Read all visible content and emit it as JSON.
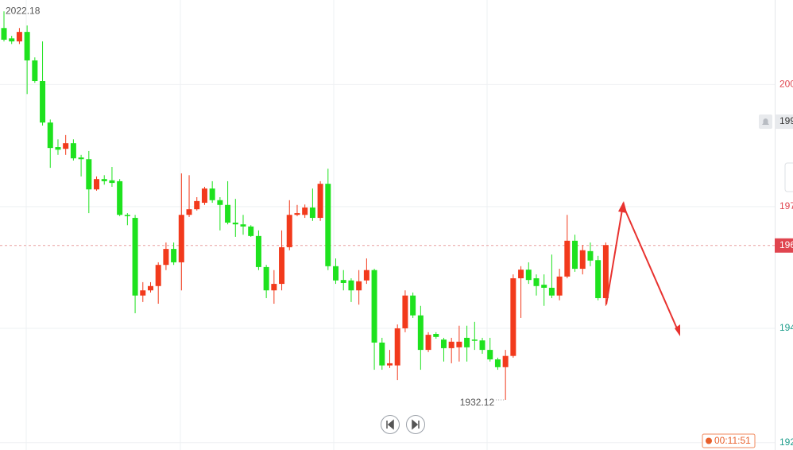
{
  "chart_data": {
    "type": "candlestick",
    "up_color": "#f23a1c",
    "down_color": "#1ee21e",
    "ylim": [
      1920.5,
      2024.8
    ],
    "yticks": [
      {
        "value": 2005.2,
        "label": "200"
      },
      {
        "value": 1976.9,
        "label": "197"
      },
      {
        "value": 1948.7,
        "label": "194"
      },
      {
        "value": 1922.2,
        "label": "192"
      }
    ],
    "grid": true,
    "current_price": {
      "value": 1967.9,
      "label": "196"
    },
    "alert_price": {
      "value": 1996.6,
      "label": "199"
    },
    "timer": "00:11:51",
    "open": [
      2018.3,
      2015.9,
      2015.2,
      2017.4,
      2010.8,
      2006.0,
      1996.4,
      1990.7,
      1990.3,
      1991.6,
      1988.3,
      1987.9,
      1980.9,
      1983.3,
      1983.0,
      1982.8,
      1975.0,
      1974.3,
      1956.3,
      1957.5,
      1958.5,
      1963.4,
      1967.1,
      1964.0,
      1975.0,
      1976.3,
      1977.8,
      1981.1,
      1978.4,
      1977.3,
      1973.2,
      1972.8,
      1972.3,
      1970.1,
      1962.9,
      1957.5,
      1959.0,
      1967.5,
      1975.0,
      1975.0,
      1976.7,
      1974.3,
      1982.2,
      1963.1,
      1959.9,
      1959.8,
      1957.5,
      1959.8,
      1962.2,
      1945.4,
      1940.1,
      1940.1,
      1948.7,
      1956.3,
      1951.7,
      1943.7,
      1947.4,
      1946.1,
      1944.1,
      1944.3,
      1946.5,
      1946.1,
      1945.9,
      1943.7,
      1941.5,
      1939.7,
      1942.3,
      1960.3,
      1962.3,
      1960.3,
      1958.8,
      1958.1,
      1956.3,
      1960.7,
      1969.0,
      1962.5,
      1966.6,
      1964.5,
      1955.7
    ],
    "high": [
      2022.18,
      2016.5,
      2018.3,
      2018.9,
      2011.5,
      2015.2,
      1997.1,
      1992.5,
      1993.5,
      1992.5,
      1988.9,
      1989.8,
      1983.9,
      1984.2,
      1986.1,
      1983.3,
      1975.4,
      1975.0,
      1959.4,
      1959.4,
      1964.0,
      1968.6,
      1968.6,
      1984.6,
      1984.2,
      1979.1,
      1981.5,
      1982.8,
      1979.1,
      1982.8,
      1978.7,
      1975.0,
      1972.6,
      1971.4,
      1963.4,
      1962.2,
      1971.4,
      1978.4,
      1977.3,
      1977.4,
      1981.1,
      1982.8,
      1985.7,
      1964.9,
      1962.2,
      1960.3,
      1962.2,
      1964.9,
      1962.5,
      1946.5,
      1943.7,
      1949.6,
      1957.5,
      1957.0,
      1953.9,
      1947.8,
      1947.8,
      1946.5,
      1946.5,
      1949.3,
      1949.3,
      1950.2,
      1946.5,
      1946.5,
      1941.9,
      1943.7,
      1961.2,
      1963.1,
      1964.0,
      1961.2,
      1961.2,
      1965.8,
      1962.5,
      1975.0,
      1970.4,
      1968.0,
      1968.6,
      1965.5,
      1968.6
    ],
    "low": [
      2015.2,
      2014.6,
      2014.6,
      2003.0,
      2005.6,
      1995.7,
      1985.9,
      1988.9,
      1988.9,
      1987.6,
      1983.9,
      1975.4,
      1980.6,
      1982.0,
      1981.5,
      1974.7,
      1972.6,
      1952.2,
      1954.8,
      1957.0,
      1954.4,
      1962.2,
      1963.4,
      1957.5,
      1974.5,
      1976.0,
      1977.3,
      1977.8,
      1971.4,
      1972.8,
      1969.9,
      1970.4,
      1969.9,
      1962.2,
      1955.7,
      1954.4,
      1957.5,
      1966.8,
      1974.7,
      1974.3,
      1973.6,
      1973.6,
      1962.2,
      1959.0,
      1957.5,
      1954.8,
      1954.2,
      1959.0,
      1939.1,
      1939.1,
      1939.5,
      1936.7,
      1947.8,
      1951.1,
      1939.1,
      1943.2,
      1946.3,
      1941.0,
      1940.6,
      1941.0,
      1941.0,
      1943.7,
      1942.8,
      1941.0,
      1939.1,
      1932.12,
      1941.9,
      1951.1,
      1959.0,
      1956.3,
      1953.9,
      1955.7,
      1955.2,
      1960.3,
      1961.8,
      1961.2,
      1963.1,
      1955.2,
      1953.9
    ],
    "close": [
      2015.6,
      2015.2,
      2017.4,
      2010.8,
      2006.0,
      1996.4,
      1990.5,
      1990.1,
      1991.6,
      1988.1,
      1987.9,
      1980.9,
      1983.3,
      1982.8,
      1982.4,
      1975.0,
      1974.7,
      1956.3,
      1957.5,
      1958.5,
      1963.4,
      1967.1,
      1964.0,
      1975.0,
      1976.3,
      1978.2,
      1981.1,
      1978.4,
      1977.3,
      1973.2,
      1972.8,
      1972.3,
      1970.1,
      1962.9,
      1957.5,
      1959.0,
      1967.5,
      1975.0,
      1975.4,
      1976.7,
      1974.3,
      1982.2,
      1963.1,
      1959.8,
      1959.2,
      1957.5,
      1959.6,
      1962.2,
      1945.4,
      1940.1,
      1940.6,
      1948.7,
      1956.3,
      1951.7,
      1943.7,
      1947.2,
      1946.7,
      1944.1,
      1945.6,
      1945.6,
      1944.3,
      1945.8,
      1943.7,
      1941.5,
      1939.7,
      1942.3,
      1960.3,
      1962.3,
      1959.9,
      1958.5,
      1958.1,
      1956.3,
      1960.7,
      1969.0,
      1962.5,
      1966.8,
      1964.4,
      1955.7,
      1968.0
    ]
  }
}
